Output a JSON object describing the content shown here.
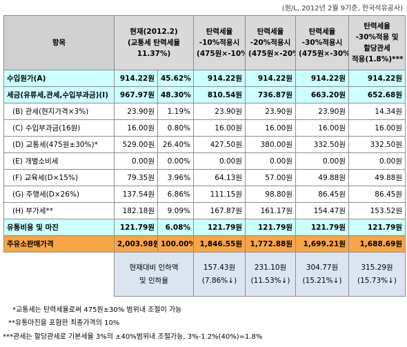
{
  "note": "(원/L, 2012년 2월 9기준, 한국석유공사)",
  "table": {
    "header": [
      [
        "항목"
      ],
      [
        "현재(2012.2)",
        "(교통세 탄력세율",
        "11.37%)"
      ],
      [
        "탄력세율",
        "-10%적용시",
        "(475원×-10%)"
      ],
      [
        "탄력세율",
        "-20%적용시",
        "(475원×-20%)"
      ],
      [
        "탄력세율",
        "-30%적용시",
        "(475원×-30%)"
      ],
      [
        "탄력세율",
        "-30%적용 및",
        "할당관세",
        "적용(1.8%)***"
      ]
    ],
    "rows": [
      [
        "수입원가(A)",
        "914.22원",
        "45.62%",
        "914.22원",
        "914.22원",
        "914.22원",
        "914.22원"
      ],
      [
        "세금(유류세,관세,수입부과금)(I)",
        "967.97원",
        "48.30%",
        "810.54원",
        "736.87원",
        "663.20원",
        "652.68원"
      ],
      [
        "(B) 관세(현지가격×3%)",
        "23.90원",
        "1.19%",
        "23.90원",
        "23.90원",
        "23.90원",
        "14.34원"
      ],
      [
        "(C) 수입부과금(16원)",
        "16.00원",
        "0.80%",
        "16.00원",
        "16.00원",
        "16.00원",
        "16.00원"
      ],
      [
        "(D) 교통세(475원±30%)*",
        "529.00원",
        "26.40%",
        "427.50원",
        "380.00원",
        "332.50원",
        "332.50원"
      ],
      [
        "(E) 개별소비세",
        "0.00원",
        "0.00%",
        "0.00원",
        "0.00원",
        "0.00원",
        "0.00원"
      ],
      [
        "(F) 교육세(D×15%)",
        "79.35원",
        "3.96%",
        "64.13원",
        "57.00원",
        "49.88원",
        "49.88원"
      ],
      [
        "(G) 주행세(D×26%)",
        "137.54원",
        "6.86%",
        "111.15원",
        "98.80원",
        "86.45원",
        "86.45원"
      ],
      [
        "(H) 부가세**",
        "182.18원",
        "9.09%",
        "167.87원",
        "161.17원",
        "154.47원",
        "153.52원"
      ],
      [
        "유통비용 및 마진",
        "121.79원",
        "6.08%",
        "121.79원",
        "121.79원",
        "121.79원",
        "121.79원"
      ],
      [
        "주유소판매가격",
        "2,003.98원",
        "100.00%",
        "1,846.55원",
        "1,772.88원",
        "1,699.21원",
        "1,688.69원"
      ]
    ],
    "footer": {
      "label": [
        "현재대비 인하액",
        "및 인하율"
      ],
      "values": [
        [
          "157.43원",
          "(7.86%↓)"
        ],
        [
          "231.10원",
          "(11.53%↓)"
        ],
        [
          "304.77원",
          "(15.21%↓)"
        ],
        [
          "315.29원",
          "(15.73%↓)"
        ]
      ]
    }
  },
  "footnotes": [
    "*교통세는 탄력세율로써 475원±30% 범위내 조절이 가능",
    "**유통마진을 포함한 최종가격의 10%",
    "***관세는 할당관세로 기본세율 3%의 ±40%범위내 조절가능, 3%-1.2%(40%)=1.8%"
  ]
}
